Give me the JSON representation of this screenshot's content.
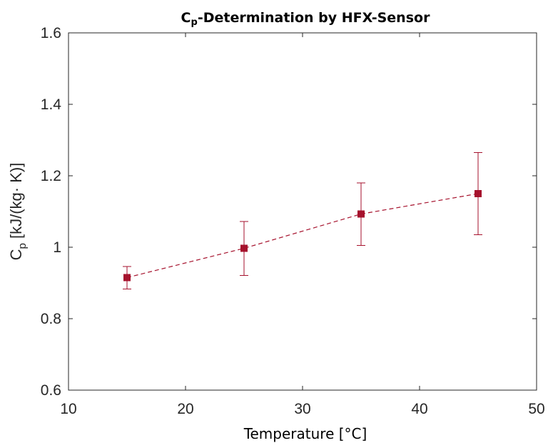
{
  "chart_data": {
    "type": "scatter",
    "title": "Cp-Determination by HFX-Sensor",
    "title_parts": {
      "main": "C",
      "sub": "p",
      "rest": "-Determination by HFX-Sensor"
    },
    "xlabel": "Temperature [°C]",
    "ylabel": "Cp [kJ/(kg· K)]",
    "ylabel_parts": {
      "main": "C",
      "sub": "p",
      "rest": " [kJ/(kg· K)]"
    },
    "xlim": [
      10,
      50
    ],
    "ylim": [
      0.6,
      1.6
    ],
    "xticks": [
      10,
      20,
      30,
      40,
      50
    ],
    "xtick_labels": [
      "10",
      "20",
      "30",
      "40",
      "50"
    ],
    "yticks": [
      0.6,
      0.8,
      1.0,
      1.2,
      1.4,
      1.6
    ],
    "ytick_labels": [
      "0.6",
      "0.8",
      "1",
      "1.2",
      "1.4",
      "1.6"
    ],
    "grid": false,
    "series": [
      {
        "x": [
          15,
          25,
          35,
          45
        ],
        "y": [
          0.915,
          0.997,
          1.093,
          1.15
        ],
        "err_low": [
          0.883,
          0.921,
          1.005,
          1.035
        ],
        "err_high": [
          0.946,
          1.072,
          1.18,
          1.265
        ],
        "color": "#a6122d",
        "line_style": "dashed",
        "marker": "square"
      }
    ]
  }
}
